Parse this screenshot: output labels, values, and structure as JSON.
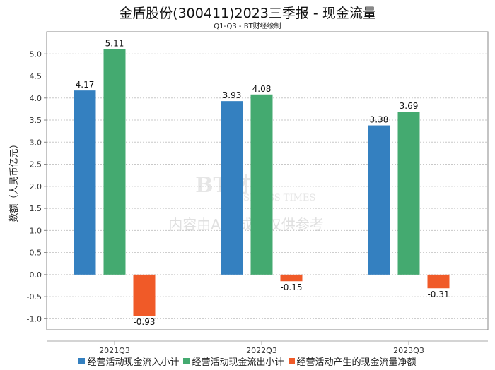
{
  "chart_data": {
    "type": "bar",
    "title": "金盾股份(300411)2023三季报 - 现金流量",
    "subtitle": "Q1-Q3 - BT财经绘制",
    "ylabel": "数额（人民币亿元）",
    "xlabel": "",
    "categories": [
      "2021Q3",
      "2022Q3",
      "2023Q3"
    ],
    "ylim": [
      -1.25,
      5.5
    ],
    "yticks": [
      "-1.0",
      "-0.5",
      "0.0",
      "0.5",
      "1.0",
      "1.5",
      "2.0",
      "2.5",
      "3.0",
      "3.5",
      "4.0",
      "4.5",
      "5.0"
    ],
    "grid": true,
    "legend_position": "bottom",
    "series": [
      {
        "name": "经营活动现金流入小计",
        "color": "#3480c0",
        "values": [
          4.17,
          3.93,
          3.38
        ],
        "labels": [
          "4.17",
          "3.93",
          "3.38"
        ]
      },
      {
        "name": "经营活动现金流出小计",
        "color": "#44aa70",
        "values": [
          5.11,
          4.08,
          3.69
        ],
        "labels": [
          "5.11",
          "4.08",
          "3.69"
        ]
      },
      {
        "name": "经营活动产生的现金流量净额",
        "color": "#f05a28",
        "values": [
          -0.93,
          -0.15,
          -0.31
        ],
        "labels": [
          "-0.93",
          "-0.15",
          "-0.31"
        ]
      }
    ],
    "watermark": {
      "logo": "BT财经",
      "logo_sub": "BUSINESS TIMES",
      "text": "内容由AI生成，仅供参考"
    }
  }
}
